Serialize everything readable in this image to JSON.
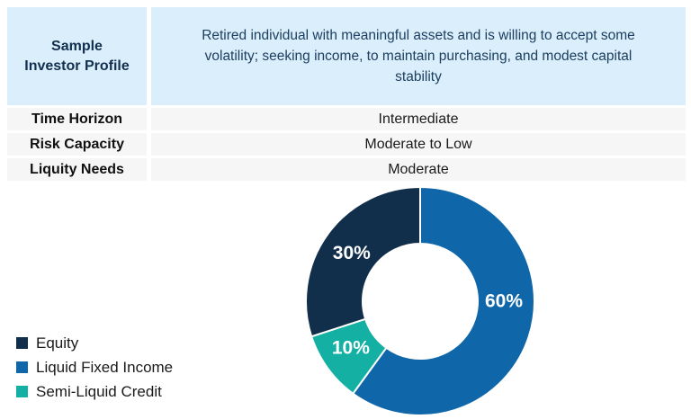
{
  "colors": {
    "header_bg": "#daeefb",
    "header_text": "#12304e",
    "row_bg": "#f6f6f6",
    "equity": "#112e4a",
    "liquid_fixed_income": "#0f67a9",
    "semi_liquid_credit": "#14b0a4",
    "slice_label_text": "#ffffff"
  },
  "profile_table": {
    "header": {
      "label": "Sample\nInvestor Profile",
      "description": "Retired individual with meaningful assets and is willing to accept some volatility; seeking income, to maintain purchasing, and modest capital stability"
    },
    "rows": [
      {
        "label": "Time Horizon",
        "value": "Intermediate"
      },
      {
        "label": "Risk Capacity",
        "value": "Moderate to Low"
      },
      {
        "label": "Liquity Needs",
        "value": "Moderate"
      }
    ]
  },
  "chart_data": {
    "type": "pie",
    "donut": true,
    "start_angle_deg": 0,
    "direction": "clockwise",
    "hole_radius_frac": 0.5,
    "slices": [
      {
        "name": "Liquid Fixed Income",
        "value": 60,
        "label": "60%",
        "color": "#0f67a9",
        "label_angle_deg": 90
      },
      {
        "name": "Semi-Liquid Credit",
        "value": 10,
        "label": "10%",
        "color": "#14b0a4",
        "label_angle_deg": 236
      },
      {
        "name": "Equity",
        "value": 30,
        "label": "30%",
        "color": "#112e4a",
        "label_angle_deg": 305
      }
    ],
    "legend": [
      {
        "label": "Equity",
        "color": "#112e4a"
      },
      {
        "label": "Liquid Fixed Income",
        "color": "#0f67a9"
      },
      {
        "label": "Semi-Liquid Credit",
        "color": "#14b0a4"
      }
    ],
    "legend_position": "bottom-left"
  }
}
